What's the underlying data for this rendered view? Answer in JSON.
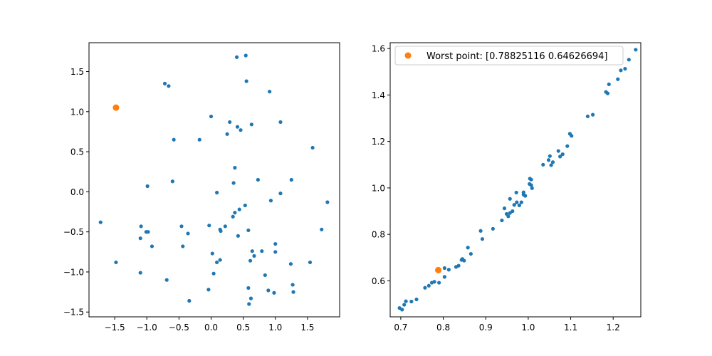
{
  "colors": {
    "series": "#1f77b4",
    "highlight": "#ff7f0e",
    "axes": "#000000",
    "background": "#ffffff"
  },
  "chart_data": [
    {
      "type": "scatter",
      "title": "",
      "xlabel": "",
      "ylabel": "",
      "xlim": [
        -1.9,
        2.0
      ],
      "ylim": [
        -1.56,
        1.86
      ],
      "xticks": [
        -1.5,
        -1.0,
        -0.5,
        0.0,
        0.5,
        1.0,
        1.5
      ],
      "xtick_labels": [
        "−1.5",
        "−1.0",
        "−0.5",
        "0.0",
        "0.5",
        "1.0",
        "1.5"
      ],
      "yticks": [
        -1.5,
        -1.0,
        -0.5,
        0.0,
        0.5,
        1.0,
        1.5
      ],
      "ytick_labels": [
        "−1.5",
        "−1.0",
        "−0.5",
        "0.0",
        "0.5",
        "1.0",
        "1.5"
      ],
      "grid": false,
      "series": [
        {
          "color": "#1f77b4",
          "points": [
            [
              0.4,
              1.68
            ],
            [
              0.54,
              1.7
            ],
            [
              -0.72,
              1.35
            ],
            [
              -0.66,
              1.32
            ],
            [
              0.55,
              1.38
            ],
            [
              0.91,
              1.25
            ],
            [
              0.0,
              0.94
            ],
            [
              0.29,
              0.87
            ],
            [
              0.41,
              0.81
            ],
            [
              0.46,
              0.77
            ],
            [
              0.63,
              0.84
            ],
            [
              1.08,
              0.87
            ],
            [
              0.25,
              0.72
            ],
            [
              -0.18,
              0.65
            ],
            [
              -0.58,
              0.65
            ],
            [
              1.58,
              0.55
            ],
            [
              0.37,
              0.3
            ],
            [
              -0.6,
              0.13
            ],
            [
              0.35,
              0.11
            ],
            [
              0.73,
              0.15
            ],
            [
              1.25,
              0.15
            ],
            [
              -0.99,
              0.07
            ],
            [
              0.09,
              -0.01
            ],
            [
              1.08,
              -0.02
            ],
            [
              0.93,
              -0.11
            ],
            [
              1.81,
              -0.13
            ],
            [
              0.53,
              -0.17
            ],
            [
              0.37,
              -0.26
            ],
            [
              0.34,
              -0.31
            ],
            [
              0.44,
              -0.22
            ],
            [
              -1.72,
              -0.38
            ],
            [
              -1.09,
              -0.43
            ],
            [
              -0.46,
              -0.43
            ],
            [
              -0.03,
              -0.42
            ],
            [
              0.22,
              -0.43
            ],
            [
              0.14,
              -0.47
            ],
            [
              0.15,
              -0.49
            ],
            [
              -1.01,
              -0.5
            ],
            [
              -0.98,
              -0.5
            ],
            [
              -0.36,
              -0.52
            ],
            [
              0.58,
              -0.48
            ],
            [
              1.72,
              -0.47
            ],
            [
              -1.1,
              -0.58
            ],
            [
              0.42,
              -0.55
            ],
            [
              -0.92,
              -0.68
            ],
            [
              -0.44,
              -0.68
            ],
            [
              1.0,
              -0.65
            ],
            [
              0.64,
              -0.74
            ],
            [
              0.79,
              -0.74
            ],
            [
              1.0,
              -0.75
            ],
            [
              0.02,
              -0.77
            ],
            [
              0.67,
              -0.8
            ],
            [
              0.14,
              -0.85
            ],
            [
              0.09,
              -0.88
            ],
            [
              0.61,
              -0.86
            ],
            [
              -1.48,
              -0.88
            ],
            [
              1.54,
              -0.88
            ],
            [
              1.24,
              -0.9
            ],
            [
              -1.1,
              -1.01
            ],
            [
              0.04,
              -1.02
            ],
            [
              0.84,
              -1.04
            ],
            [
              -0.69,
              -1.1
            ],
            [
              1.27,
              -1.16
            ],
            [
              0.58,
              -1.2
            ],
            [
              -0.04,
              -1.22
            ],
            [
              0.89,
              -1.23
            ],
            [
              0.98,
              -1.26
            ],
            [
              1.28,
              -1.25
            ],
            [
              0.62,
              -1.33
            ],
            [
              -0.34,
              -1.36
            ],
            [
              0.59,
              -1.4
            ]
          ]
        }
      ],
      "highlight_point": [
        -1.48,
        1.05
      ]
    },
    {
      "type": "scatter",
      "title": "",
      "xlabel": "",
      "ylabel": "",
      "xlim": [
        0.675,
        1.265
      ],
      "ylim": [
        0.445,
        1.625
      ],
      "xticks": [
        0.7,
        0.8,
        0.9,
        1.0,
        1.1,
        1.2
      ],
      "xtick_labels": [
        "0.7",
        "0.8",
        "0.9",
        "1.0",
        "1.1",
        "1.2"
      ],
      "yticks": [
        0.6,
        0.8,
        1.0,
        1.2,
        1.4,
        1.6
      ],
      "ytick_labels": [
        "0.6",
        "0.8",
        "1.0",
        "1.2",
        "1.4",
        "1.6"
      ],
      "grid": false,
      "legend": {
        "label": "Worst point: [0.78825116 0.64626694]",
        "loc": "upper right"
      },
      "series": [
        {
          "color": "#1f77b4",
          "points": [
            [
              0.697,
              0.483
            ],
            [
              0.703,
              0.476
            ],
            [
              0.708,
              0.497
            ],
            [
              0.712,
              0.512
            ],
            [
              0.725,
              0.511
            ],
            [
              0.737,
              0.52
            ],
            [
              0.757,
              0.57
            ],
            [
              0.766,
              0.579
            ],
            [
              0.773,
              0.592
            ],
            [
              0.779,
              0.596
            ],
            [
              0.79,
              0.592
            ],
            [
              0.803,
              0.655
            ],
            [
              0.803,
              0.617
            ],
            [
              0.813,
              0.648
            ],
            [
              0.83,
              0.66
            ],
            [
              0.836,
              0.665
            ],
            [
              0.843,
              0.69
            ],
            [
              0.845,
              0.694
            ],
            [
              0.849,
              0.687
            ],
            [
              0.858,
              0.743
            ],
            [
              0.865,
              0.716
            ],
            [
              0.888,
              0.815
            ],
            [
              0.892,
              0.78
            ],
            [
              0.917,
              0.824
            ],
            [
              0.938,
              0.86
            ],
            [
              0.944,
              0.912
            ],
            [
              0.949,
              0.888
            ],
            [
              0.953,
              0.878
            ],
            [
              0.957,
              0.953
            ],
            [
              0.957,
              0.892
            ],
            [
              0.963,
              0.9
            ],
            [
              0.967,
              0.927
            ],
            [
              0.972,
              0.98
            ],
            [
              0.973,
              0.938
            ],
            [
              0.979,
              0.925
            ],
            [
              0.984,
              0.938
            ],
            [
              0.989,
              0.981
            ],
            [
              0.989,
              0.971
            ],
            [
              0.993,
              0.966
            ],
            [
              1.003,
              1.017
            ],
            [
              1.004,
              1.04
            ],
            [
              1.007,
              1.012
            ],
            [
              1.007,
              1.036
            ],
            [
              1.009,
              0.999
            ],
            [
              1.035,
              1.1
            ],
            [
              1.048,
              1.12
            ],
            [
              1.051,
              1.137
            ],
            [
              1.054,
              1.098
            ],
            [
              1.058,
              1.111
            ],
            [
              1.071,
              1.159
            ],
            [
              1.075,
              1.135
            ],
            [
              1.081,
              1.145
            ],
            [
              1.092,
              1.18
            ],
            [
              1.098,
              1.233
            ],
            [
              1.102,
              1.224
            ],
            [
              1.14,
              1.308
            ],
            [
              1.152,
              1.315
            ],
            [
              1.183,
              1.413
            ],
            [
              1.187,
              1.407
            ],
            [
              1.19,
              1.446
            ],
            [
              1.211,
              1.468
            ],
            [
              1.218,
              1.506
            ],
            [
              1.228,
              1.513
            ],
            [
              1.237,
              1.552
            ],
            [
              1.253,
              1.595
            ]
          ]
        }
      ],
      "highlight_point": [
        0.78825116,
        0.64626694
      ]
    }
  ]
}
